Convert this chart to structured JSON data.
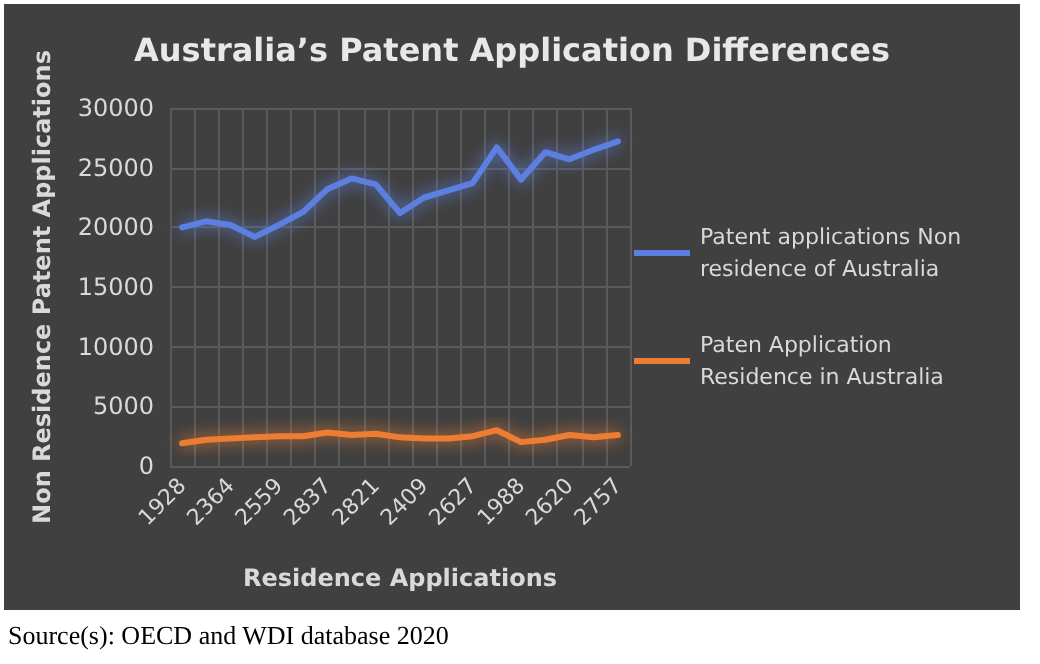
{
  "chart_data": {
    "type": "line",
    "title": "Australia’s Patent Application Differences",
    "xlabel": "Residence Applications",
    "ylabel": "Non Residence Patent Applications",
    "categories": [
      "1928",
      null,
      "2364",
      null,
      "2559",
      null,
      "2837",
      null,
      "2821",
      null,
      "2409",
      null,
      "2627",
      null,
      "1988",
      null,
      "2620",
      null,
      "2757"
    ],
    "series": [
      {
        "name": "Patent applications Non residence of Australia",
        "color": "#5b7fe0",
        "values": [
          20000,
          20500,
          20200,
          19200,
          20200,
          21300,
          23200,
          24100,
          23600,
          21200,
          22500,
          23100,
          23700,
          26700,
          24000,
          26300,
          25700,
          26500,
          27200
        ]
      },
      {
        "name": "Paten Application Residence in Australia",
        "color": "#ed7d31",
        "values": [
          1900,
          2200,
          2300,
          2400,
          2500,
          2500,
          2800,
          2600,
          2700,
          2400,
          2300,
          2300,
          2500,
          3000,
          2000,
          2200,
          2600,
          2400,
          2600
        ]
      }
    ],
    "ylim": [
      0,
      30000
    ],
    "yticks": [
      0,
      5000,
      10000,
      15000,
      20000,
      25000,
      30000
    ],
    "grid": true,
    "legend": "right",
    "marker": "none",
    "line_style": "solid",
    "annotations": [
      "Source(s): OECD and WDI database 2020"
    ]
  }
}
